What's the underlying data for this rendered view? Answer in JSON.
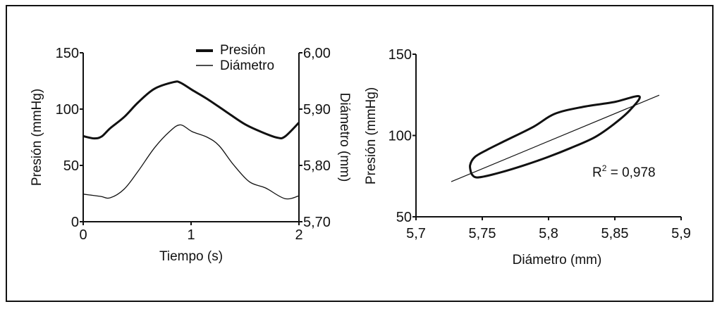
{
  "chart_data": [
    {
      "type": "line",
      "xlabel": "Tiempo (s)",
      "ylabel": "Presión (mmHg)",
      "y2label": "Diámetro (mm)",
      "xlim": [
        0,
        2
      ],
      "ylim": [
        0,
        150
      ],
      "y2lim": [
        5.7,
        6.0
      ],
      "xticks": [
        "0",
        "1",
        "2"
      ],
      "xtick_values": [
        0,
        1,
        2
      ],
      "yticks": [
        "0",
        "50",
        "100",
        "150"
      ],
      "ytick_values": [
        0,
        50,
        100,
        150
      ],
      "y2ticks": [
        "5,70",
        "5,80",
        "5,90",
        "6,00"
      ],
      "y2tick_values": [
        5.7,
        5.8,
        5.9,
        6.0
      ],
      "legend": {
        "placement": "top-center",
        "entries": [
          "Presión",
          "Diámetro"
        ]
      },
      "series": [
        {
          "name": "Presión",
          "axis": "left",
          "x": [
            0,
            0.1,
            0.17,
            0.25,
            0.38,
            0.51,
            0.66,
            0.84,
            0.9,
            1.01,
            1.15,
            1.32,
            1.5,
            1.67,
            1.8,
            1.87,
            2
          ],
          "y": [
            76,
            74,
            75.6,
            83,
            93,
            106,
            118,
            124,
            123.5,
            117,
            109,
            98,
            86.5,
            79,
            74.6,
            75.6,
            88
          ]
        },
        {
          "name": "Diámetro",
          "axis": "right",
          "x": [
            0,
            0.16,
            0.25,
            0.38,
            0.51,
            0.66,
            0.8,
            0.9,
            1.01,
            1.15,
            1.26,
            1.39,
            1.54,
            1.69,
            1.87,
            2
          ],
          "y": [
            5.749,
            5.745,
            5.7425,
            5.758,
            5.79,
            5.831,
            5.86,
            5.872,
            5.86,
            5.85,
            5.835,
            5.802,
            5.771,
            5.76,
            5.741,
            5.746
          ]
        }
      ]
    },
    {
      "type": "scatter",
      "xlabel": "Diámetro (mm)",
      "ylabel": "Presión (mmHg)",
      "xlim": [
        5.7,
        5.9
      ],
      "ylim": [
        50,
        150
      ],
      "xticks": [
        "5,7",
        "5,75",
        "5,8",
        "5,85",
        "5,9"
      ],
      "xtick_values": [
        5.7,
        5.75,
        5.8,
        5.85,
        5.9
      ],
      "yticks": [
        "50",
        "100",
        "150"
      ],
      "ytick_values": [
        50,
        100,
        150
      ],
      "annotation": {
        "r_label": "R",
        "r_sup": "2",
        "r_value": " = 0,978"
      },
      "loop": {
        "x": [
          5.7417,
          5.7408,
          5.7443,
          5.7532,
          5.7674,
          5.7887,
          5.8046,
          5.8259,
          5.849,
          5.8684,
          5.8613,
          5.849,
          5.8348,
          5.817,
          5.7993,
          5.7816,
          5.7638,
          5.7496,
          5.7443,
          5.7417
        ],
        "y": [
          76.6,
          81.7,
          86.7,
          91,
          96.8,
          105.4,
          113.3,
          117.6,
          120.5,
          124.1,
          115.5,
          106.8,
          98.9,
          92.4,
          86.7,
          81.7,
          77.3,
          74.5,
          74.5,
          76.6
        ]
      },
      "fit_line": {
        "x": [
          5.7266,
          5.8835
        ],
        "y": [
          71.6,
          124.8
        ]
      }
    }
  ]
}
